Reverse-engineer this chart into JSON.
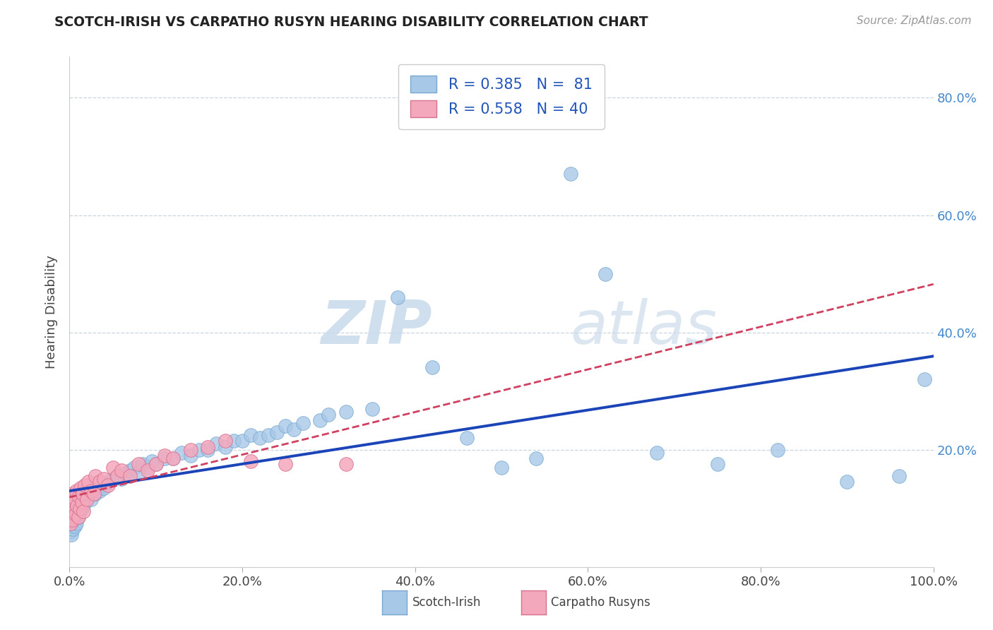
{
  "title": "SCOTCH-IRISH VS CARPATHO RUSYN HEARING DISABILITY CORRELATION CHART",
  "source_text": "Source: ZipAtlas.com",
  "ylabel": "Hearing Disability",
  "xlim": [
    0,
    1.0
  ],
  "ylim": [
    0,
    0.87
  ],
  "xtick_labels": [
    "0.0%",
    "20.0%",
    "40.0%",
    "60.0%",
    "80.0%",
    "100.0%"
  ],
  "xtick_vals": [
    0,
    0.2,
    0.4,
    0.6,
    0.8,
    1.0
  ],
  "ytick_labels": [
    "20.0%",
    "40.0%",
    "60.0%",
    "80.0%"
  ],
  "ytick_vals": [
    0.2,
    0.4,
    0.6,
    0.8
  ],
  "scotch_irish_color": "#a8c8e8",
  "scotch_irish_edge": "#78a8d0",
  "carpatho_color": "#f4a8bc",
  "carpatho_edge": "#d87090",
  "regression_scotch_color": "#1a44b8",
  "regression_carpatho_color": "#d04060",
  "legend_R_scotch": "R = 0.385",
  "legend_N_scotch": "N =  81",
  "legend_R_carpatho": "R = 0.558",
  "legend_N_carpatho": "N = 40",
  "watermark_zip": "ZIP",
  "watermark_atlas": "atlas",
  "background_color": "#ffffff",
  "grid_color": "#c8d4e0",
  "scotch_irish_x": [
    0.001,
    0.002,
    0.002,
    0.003,
    0.003,
    0.004,
    0.004,
    0.005,
    0.005,
    0.006,
    0.006,
    0.007,
    0.007,
    0.008,
    0.008,
    0.009,
    0.009,
    0.01,
    0.01,
    0.011,
    0.012,
    0.013,
    0.014,
    0.015,
    0.016,
    0.018,
    0.02,
    0.022,
    0.025,
    0.028,
    0.03,
    0.033,
    0.035,
    0.038,
    0.04,
    0.045,
    0.05,
    0.055,
    0.06,
    0.065,
    0.07,
    0.075,
    0.08,
    0.085,
    0.09,
    0.095,
    0.1,
    0.11,
    0.12,
    0.13,
    0.14,
    0.15,
    0.16,
    0.17,
    0.18,
    0.19,
    0.2,
    0.21,
    0.22,
    0.23,
    0.24,
    0.25,
    0.26,
    0.27,
    0.29,
    0.3,
    0.32,
    0.35,
    0.38,
    0.42,
    0.46,
    0.5,
    0.54,
    0.58,
    0.62,
    0.68,
    0.75,
    0.82,
    0.9,
    0.96,
    0.99
  ],
  "scotch_irish_y": [
    0.06,
    0.08,
    0.055,
    0.09,
    0.07,
    0.065,
    0.085,
    0.075,
    0.095,
    0.08,
    0.07,
    0.1,
    0.085,
    0.09,
    0.075,
    0.105,
    0.095,
    0.1,
    0.085,
    0.11,
    0.095,
    0.12,
    0.1,
    0.11,
    0.105,
    0.115,
    0.12,
    0.125,
    0.115,
    0.13,
    0.125,
    0.135,
    0.13,
    0.14,
    0.135,
    0.145,
    0.15,
    0.155,
    0.15,
    0.16,
    0.165,
    0.17,
    0.16,
    0.175,
    0.17,
    0.18,
    0.175,
    0.185,
    0.185,
    0.195,
    0.19,
    0.2,
    0.2,
    0.21,
    0.205,
    0.215,
    0.215,
    0.225,
    0.22,
    0.225,
    0.23,
    0.24,
    0.235,
    0.245,
    0.25,
    0.26,
    0.265,
    0.27,
    0.46,
    0.34,
    0.22,
    0.17,
    0.185,
    0.67,
    0.5,
    0.195,
    0.175,
    0.2,
    0.145,
    0.155,
    0.32
  ],
  "carpatho_x": [
    0.001,
    0.002,
    0.003,
    0.004,
    0.005,
    0.006,
    0.007,
    0.008,
    0.009,
    0.01,
    0.011,
    0.012,
    0.013,
    0.014,
    0.015,
    0.016,
    0.018,
    0.02,
    0.022,
    0.025,
    0.028,
    0.03,
    0.035,
    0.04,
    0.045,
    0.05,
    0.055,
    0.06,
    0.07,
    0.08,
    0.09,
    0.1,
    0.11,
    0.12,
    0.14,
    0.16,
    0.18,
    0.21,
    0.25,
    0.32
  ],
  "carpatho_y": [
    0.075,
    0.11,
    0.08,
    0.125,
    0.095,
    0.115,
    0.09,
    0.13,
    0.105,
    0.085,
    0.12,
    0.1,
    0.135,
    0.11,
    0.125,
    0.095,
    0.14,
    0.115,
    0.145,
    0.13,
    0.125,
    0.155,
    0.145,
    0.15,
    0.14,
    0.17,
    0.155,
    0.165,
    0.155,
    0.175,
    0.165,
    0.175,
    0.19,
    0.185,
    0.2,
    0.205,
    0.215,
    0.18,
    0.175,
    0.175
  ]
}
